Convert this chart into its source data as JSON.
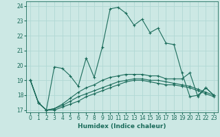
{
  "xlabel": "Humidex (Indice chaleur)",
  "bg_color": "#cce8e4",
  "grid_color": "#b0d8d4",
  "line_color": "#1a6b5a",
  "xlim": [
    -0.5,
    23.5
  ],
  "ylim": [
    16.85,
    24.3
  ],
  "yticks": [
    17,
    18,
    19,
    20,
    21,
    22,
    23,
    24
  ],
  "xticks": [
    0,
    1,
    2,
    3,
    4,
    5,
    6,
    7,
    8,
    9,
    10,
    11,
    12,
    13,
    14,
    15,
    16,
    17,
    18,
    19,
    20,
    21,
    22,
    23
  ],
  "lines": [
    [
      19.0,
      17.5,
      17.0,
      19.9,
      19.8,
      19.3,
      18.6,
      20.5,
      19.2,
      21.2,
      23.8,
      23.9,
      23.5,
      22.7,
      23.1,
      22.2,
      22.5,
      21.5,
      21.4,
      19.5,
      17.9,
      18.0,
      18.5,
      18.0
    ],
    [
      19.0,
      17.5,
      17.0,
      17.1,
      17.4,
      17.8,
      18.2,
      18.5,
      18.7,
      19.0,
      19.2,
      19.3,
      19.4,
      19.4,
      19.4,
      19.3,
      19.3,
      19.1,
      19.1,
      19.1,
      19.5,
      17.9,
      18.5,
      18.0
    ],
    [
      19.0,
      17.5,
      17.0,
      17.1,
      17.3,
      17.6,
      17.9,
      18.1,
      18.3,
      18.5,
      18.7,
      18.9,
      19.0,
      19.1,
      19.1,
      19.0,
      19.0,
      18.9,
      18.8,
      18.7,
      18.6,
      18.4,
      18.2,
      18.0
    ],
    [
      19.0,
      17.5,
      17.0,
      17.0,
      17.2,
      17.4,
      17.6,
      17.9,
      18.1,
      18.3,
      18.5,
      18.7,
      18.9,
      19.0,
      19.0,
      18.9,
      18.8,
      18.7,
      18.7,
      18.6,
      18.5,
      18.3,
      18.1,
      17.9
    ]
  ]
}
